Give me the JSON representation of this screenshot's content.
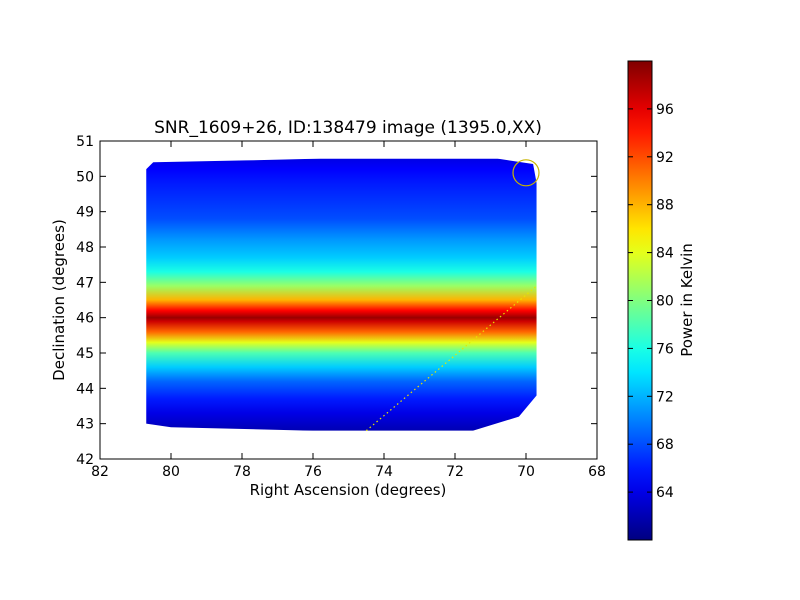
{
  "chart_data": {
    "type": "heatmap",
    "title": "SNR_1609+26, ID:138479 image (1395.0,XX)",
    "xlabel": "Right Ascension (degrees)",
    "ylabel": "Declination (degrees)",
    "xlim": [
      82,
      68
    ],
    "ylim": [
      42,
      51
    ],
    "xticks": [
      "82",
      "80",
      "78",
      "76",
      "74",
      "72",
      "70",
      "68"
    ],
    "yticks": [
      "42",
      "43",
      "44",
      "45",
      "46",
      "47",
      "48",
      "49",
      "50",
      "51"
    ],
    "colorbar": {
      "label": "Power in Kelvin",
      "range": [
        60,
        100
      ],
      "ticks": [
        "64",
        "68",
        "72",
        "76",
        "80",
        "84",
        "88",
        "92",
        "96"
      ],
      "colormap": "jet"
    },
    "map_extent": {
      "ra": [
        80.7,
        69.7
      ],
      "dec": [
        42.8,
        50.5
      ]
    },
    "dec_profile": [
      {
        "dec": 42.8,
        "power": 62
      },
      {
        "dec": 43.3,
        "power": 64
      },
      {
        "dec": 43.7,
        "power": 66
      },
      {
        "dec": 44.2,
        "power": 69
      },
      {
        "dec": 44.6,
        "power": 73
      },
      {
        "dec": 45.0,
        "power": 78
      },
      {
        "dec": 45.3,
        "power": 84
      },
      {
        "dec": 45.6,
        "power": 91
      },
      {
        "dec": 45.9,
        "power": 97
      },
      {
        "dec": 46.0,
        "power": 99
      },
      {
        "dec": 46.2,
        "power": 95
      },
      {
        "dec": 46.5,
        "power": 88
      },
      {
        "dec": 46.9,
        "power": 81
      },
      {
        "dec": 47.3,
        "power": 76
      },
      {
        "dec": 47.7,
        "power": 73
      },
      {
        "dec": 48.2,
        "power": 71
      },
      {
        "dec": 48.8,
        "power": 68
      },
      {
        "dec": 49.3,
        "power": 67
      },
      {
        "dec": 49.8,
        "power": 66
      },
      {
        "dec": 50.2,
        "power": 65
      },
      {
        "dec": 50.5,
        "power": 64
      }
    ],
    "source_marker": {
      "ra": 70.0,
      "dec": 50.1,
      "color": "#c8b400"
    },
    "dotted_line": {
      "from": {
        "ra": 74.5,
        "dec": 42.8
      },
      "to": {
        "ra": 69.7,
        "dec": 46.9
      },
      "color": "#e6e600"
    }
  }
}
